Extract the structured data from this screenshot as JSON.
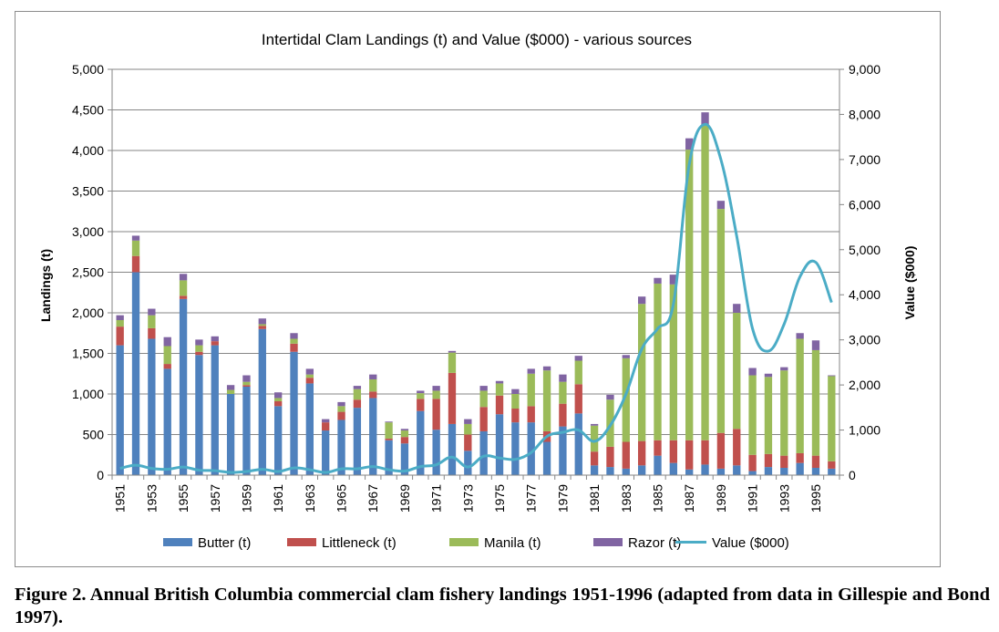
{
  "caption": "Figure 2. Annual British Columbia commercial clam fishery landings 1951-1996 (adapted from data in Gillespie and Bond 1997).",
  "chart_data": {
    "type": "bar",
    "stacked": true,
    "title": "Intertidal Clam Landings (t) and Value ($000) - various sources",
    "ylabel": "Landings (t)",
    "y2label": "Value ($000)",
    "ylim": [
      0,
      5000
    ],
    "y2lim": [
      0,
      9000
    ],
    "yticks": [
      "0",
      "500",
      "1,000",
      "1,500",
      "2,000",
      "2,500",
      "3,000",
      "3,500",
      "4,000",
      "4,500",
      "5,000"
    ],
    "y2ticks": [
      "0",
      "1,000",
      "2,000",
      "3,000",
      "4,000",
      "5,000",
      "6,000",
      "7,000",
      "8,000",
      "9,000"
    ],
    "x_tick_labels": [
      "1951",
      "1953",
      "1955",
      "1957",
      "1959",
      "1961",
      "1963",
      "1965",
      "1967",
      "1969",
      "1971",
      "1973",
      "1975",
      "1977",
      "1979",
      "1981",
      "1983",
      "1985",
      "1987",
      "1989",
      "1991",
      "1993",
      "1995"
    ],
    "grid": "horizontal",
    "legend_position": "bottom",
    "categories": [
      "1951",
      "1952",
      "1953",
      "1954",
      "1955",
      "1956",
      "1957",
      "1958",
      "1959",
      "1960",
      "1961",
      "1962",
      "1963",
      "1964",
      "1965",
      "1966",
      "1967",
      "1968",
      "1969",
      "1970",
      "1971",
      "1972",
      "1973",
      "1974",
      "1975",
      "1976",
      "1977",
      "1978",
      "1979",
      "1980",
      "1981",
      "1982",
      "1983",
      "1984",
      "1985",
      "1986",
      "1987",
      "1988",
      "1989",
      "1990",
      "1991",
      "1992",
      "1993",
      "1994",
      "1995",
      "1996"
    ],
    "series": [
      {
        "name": "Butter (t)",
        "color": "#4f81bd",
        "values": [
          1600,
          2500,
          1680,
          1310,
          2170,
          1480,
          1600,
          1000,
          1090,
          1800,
          850,
          1520,
          1130,
          550,
          680,
          830,
          950,
          430,
          390,
          790,
          560,
          630,
          300,
          540,
          750,
          650,
          650,
          410,
          600,
          760,
          120,
          100,
          80,
          120,
          240,
          150,
          70,
          130,
          80,
          120,
          50,
          100,
          90,
          150,
          90,
          80
        ]
      },
      {
        "name": "Littleneck (t)",
        "color": "#c0504d",
        "values": [
          230,
          200,
          130,
          60,
          40,
          40,
          50,
          0,
          20,
          40,
          60,
          100,
          70,
          100,
          100,
          100,
          80,
          20,
          80,
          150,
          380,
          630,
          200,
          300,
          230,
          170,
          200,
          130,
          280,
          360,
          170,
          250,
          330,
          300,
          190,
          280,
          360,
          300,
          440,
          450,
          200,
          160,
          150,
          120,
          150,
          90
        ]
      },
      {
        "name": "Manila (t)",
        "color": "#9bbb59",
        "values": [
          80,
          190,
          160,
          220,
          190,
          80,
          0,
          50,
          40,
          20,
          40,
          60,
          40,
          0,
          70,
          130,
          150,
          200,
          80,
          70,
          100,
          250,
          130,
          200,
          150,
          180,
          400,
          750,
          270,
          290,
          320,
          580,
          1030,
          1690,
          1930,
          1920,
          3580,
          3880,
          2760,
          1430,
          980,
          950,
          1050,
          1410,
          1300,
          1050
        ]
      },
      {
        "name": "Razor (t)",
        "color": "#8064a2",
        "values": [
          60,
          60,
          80,
          110,
          80,
          70,
          60,
          60,
          80,
          70,
          70,
          70,
          70,
          40,
          50,
          40,
          60,
          10,
          20,
          30,
          60,
          20,
          60,
          60,
          30,
          60,
          60,
          50,
          90,
          60,
          20,
          60,
          40,
          90,
          70,
          120,
          140,
          160,
          100,
          110,
          90,
          40,
          40,
          70,
          120,
          10
        ]
      }
    ],
    "line": {
      "name": "Value ($000)",
      "color": "#4bacc6",
      "values": [
        150,
        220,
        150,
        130,
        180,
        110,
        100,
        60,
        80,
        130,
        80,
        160,
        120,
        60,
        140,
        140,
        190,
        120,
        90,
        190,
        230,
        400,
        180,
        420,
        380,
        350,
        500,
        860,
        950,
        1000,
        750,
        1100,
        1800,
        2800,
        3250,
        3800,
        6900,
        7780,
        7000,
        5300,
        3250,
        2750,
        3350,
        4400,
        4720,
        3830
      ]
    }
  }
}
